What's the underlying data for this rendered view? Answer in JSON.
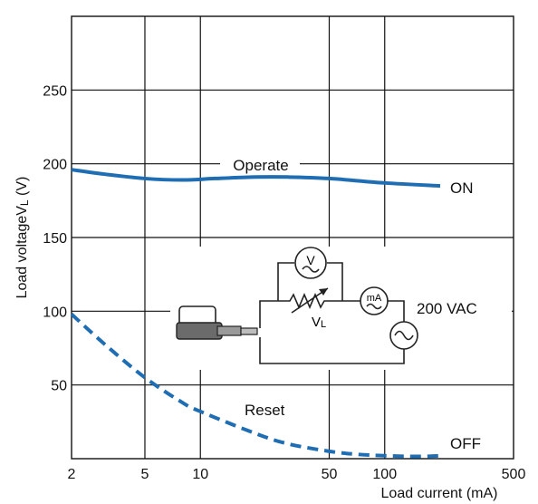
{
  "chart_data": {
    "type": "line",
    "xlabel": "Load current (mA)",
    "ylabel": "Load voltageV",
    "ylabel_subscript": "L",
    "ylabel_unit": " (V)",
    "x_scale": "log",
    "xlim": [
      2,
      500
    ],
    "ylim": [
      0,
      300
    ],
    "x_ticks": [
      2,
      5,
      10,
      50,
      100,
      500
    ],
    "y_ticks": [
      50,
      100,
      150,
      200,
      250
    ],
    "grid": true,
    "series": [
      {
        "name": "Operate",
        "end_label": "ON",
        "style": "solid",
        "color": "#1f6db3",
        "x": [
          2,
          3,
          5,
          8,
          12,
          20,
          30,
          50,
          100,
          200
        ],
        "y": [
          196,
          193,
          190,
          189,
          190,
          191,
          191,
          190,
          187,
          185
        ]
      },
      {
        "name": "Reset",
        "end_label": "OFF",
        "style": "dashed",
        "color": "#1f6db3",
        "x": [
          2,
          3,
          5,
          8,
          10,
          20,
          30,
          50,
          70,
          100,
          150,
          200
        ],
        "y": [
          98,
          78,
          55,
          38,
          32,
          17,
          10,
          5,
          3,
          2,
          1.5,
          2
        ]
      }
    ],
    "inset": {
      "description_labels": {
        "voltmeter": "V",
        "ammeter": "mA",
        "load_label": "V",
        "load_label_sub": "L",
        "supply": "200 VAC"
      }
    }
  }
}
